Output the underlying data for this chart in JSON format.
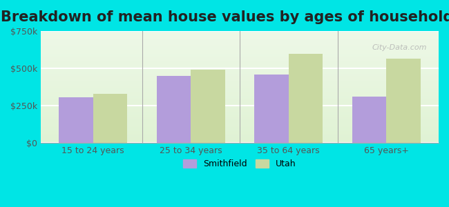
{
  "title": "Breakdown of mean house values by ages of householders",
  "categories": [
    "15 to 24 years",
    "25 to 34 years",
    "35 to 64 years",
    "65 years+"
  ],
  "smithfield_values": [
    305000,
    450000,
    460000,
    310000
  ],
  "utah_values": [
    330000,
    490000,
    595000,
    565000
  ],
  "smithfield_color": "#b39ddb",
  "utah_color": "#c8d8a0",
  "background_color": "#00e5e5",
  "ylim": [
    0,
    750000
  ],
  "yticks": [
    0,
    250000,
    500000,
    750000
  ],
  "ytick_labels": [
    "$0",
    "$250k",
    "$500k",
    "$750k"
  ],
  "bar_width": 0.35,
  "legend_smithfield": "Smithfield",
  "legend_utah": "Utah",
  "title_fontsize": 15,
  "watermark": "City-Data.com"
}
